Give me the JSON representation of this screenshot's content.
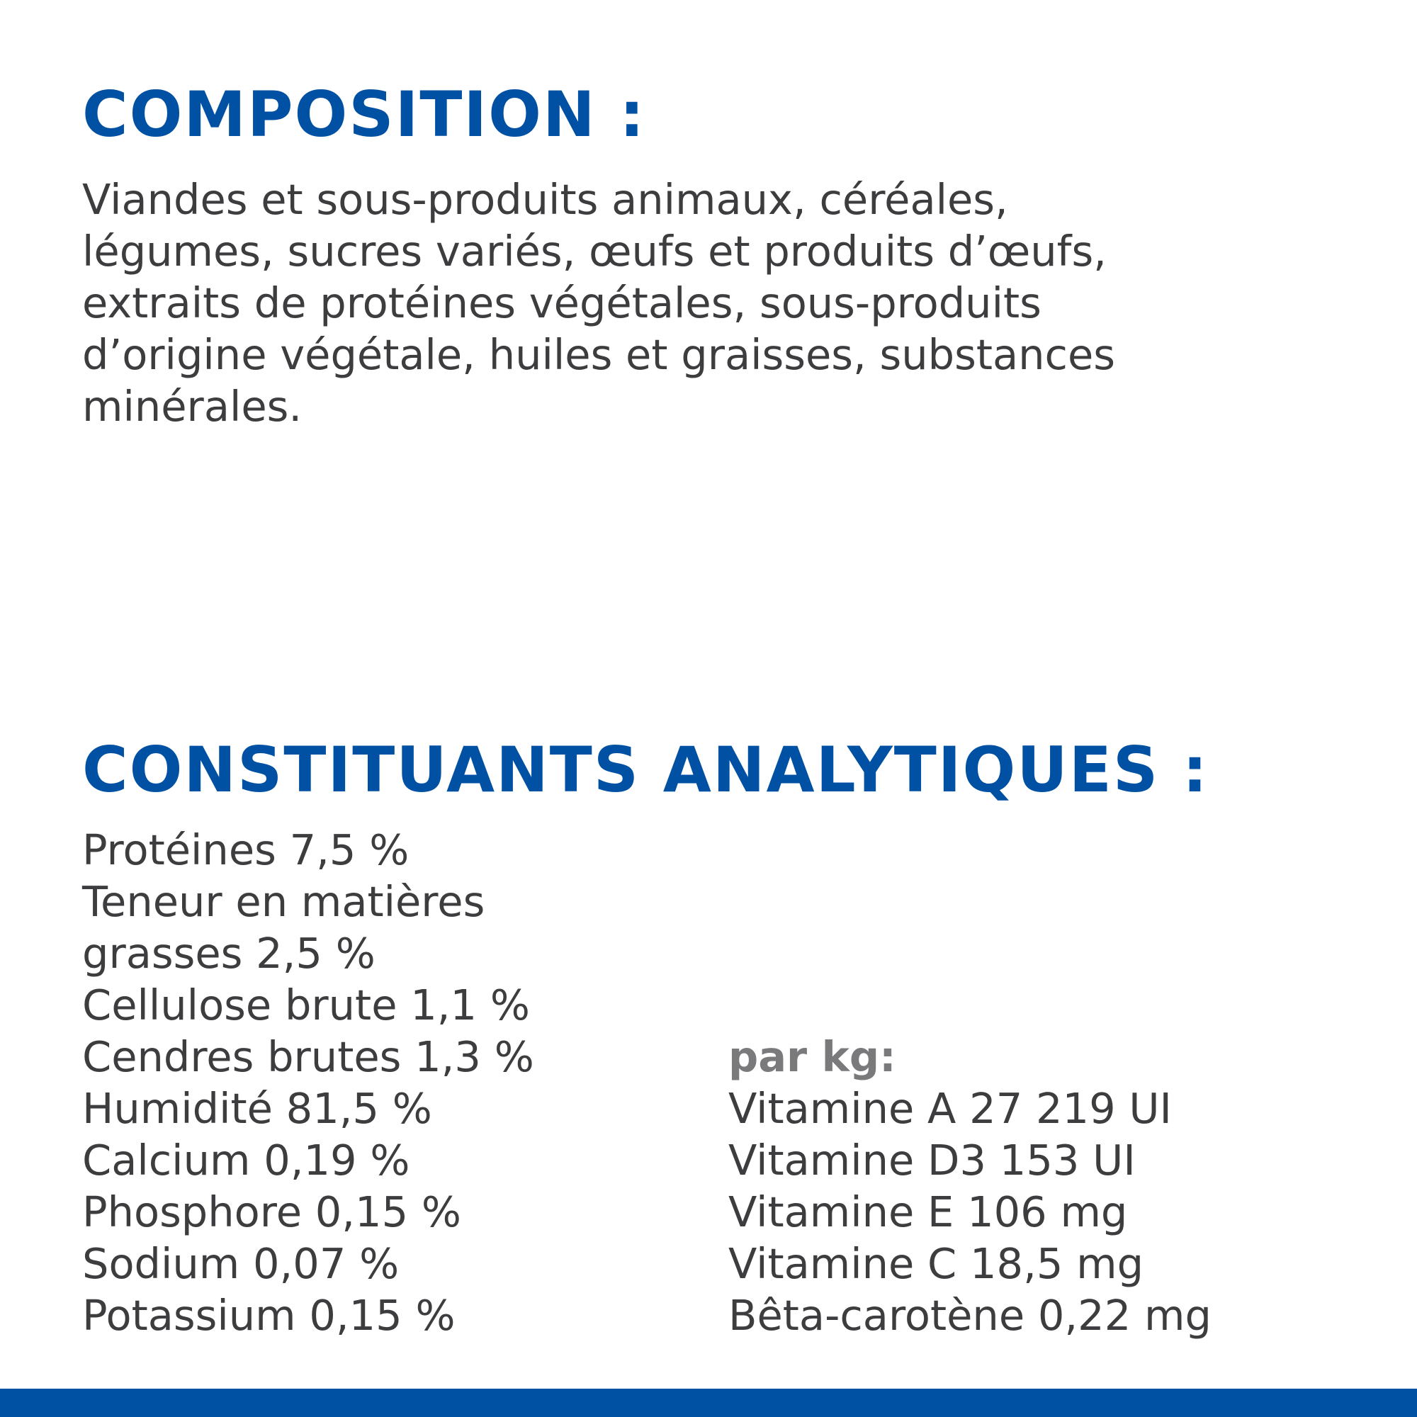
{
  "composition": {
    "title": "COMPOSITION :",
    "lines": [
      "Viandes et sous-produits animaux, céréales,",
      "légumes, sucres variés, œufs et produits d’œufs,",
      "extraits de protéines végétales, sous-produits",
      "d’origine végétale, huiles et graisses, substances",
      "minérales."
    ]
  },
  "constituants": {
    "title": "CONSTITUANTS ANALYTIQUES :",
    "left_lines": [
      "Protéines 7,5 %",
      "Teneur en matières",
      "grasses 2,5 %",
      "Cellulose brute 1,1 %",
      "Cendres brutes 1,3 %",
      "Humidité 81,5 %",
      "Calcium 0,19 %",
      "Phosphore 0,15 %",
      "Sodium 0,07 %",
      "Potassium 0,15 %"
    ],
    "per_kg_label": "par kg:",
    "per_kg_lines": [
      "Vitamine A 27 219 UI",
      "Vitamine D3 153 UI",
      "Vitamine E 106 mg",
      "Vitamine C 18,5 mg",
      "Bêta-carotène 0,22 mg"
    ]
  },
  "colors": {
    "accent": "#0050a3",
    "text": "#3d3d40",
    "subheading": "#7a7a7c"
  }
}
